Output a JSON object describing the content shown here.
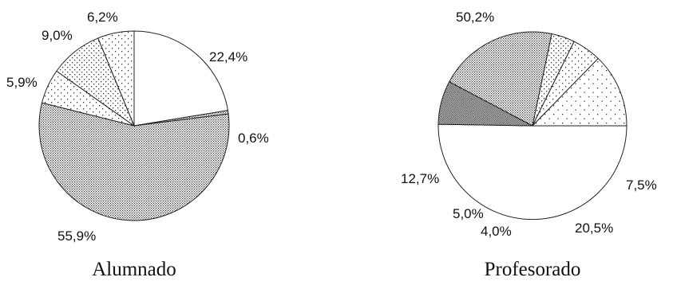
{
  "chart_data": [
    {
      "type": "pie",
      "title": "Alumnado",
      "slices": [
        {
          "label": "22,4%",
          "value": 22.4,
          "pattern": "white"
        },
        {
          "label": "0,6%",
          "value": 0.6,
          "pattern": "dense-dots"
        },
        {
          "label": "55,9%",
          "value": 55.9,
          "pattern": "dense-dots"
        },
        {
          "label": "5,9%",
          "value": 5.9,
          "pattern": "light-dots"
        },
        {
          "label": "9,0%",
          "value": 9.0,
          "pattern": "medium-dots"
        },
        {
          "label": "6,2%",
          "value": 6.2,
          "pattern": "light-dots"
        }
      ]
    },
    {
      "type": "pie",
      "title": "Profesorado",
      "slices": [
        {
          "label": "50,2%",
          "value": 50.2,
          "pattern": "white"
        },
        {
          "label": "7,5%",
          "value": 7.5,
          "pattern": "darkest-dots"
        },
        {
          "label": "20,5%",
          "value": 20.5,
          "pattern": "dense-dots"
        },
        {
          "label": "4,0%",
          "value": 4.0,
          "pattern": "medium-dots"
        },
        {
          "label": "5,0%",
          "value": 5.0,
          "pattern": "light-dots"
        },
        {
          "label": "12,7%",
          "value": 12.7,
          "pattern": "sparse-dots"
        }
      ]
    }
  ]
}
